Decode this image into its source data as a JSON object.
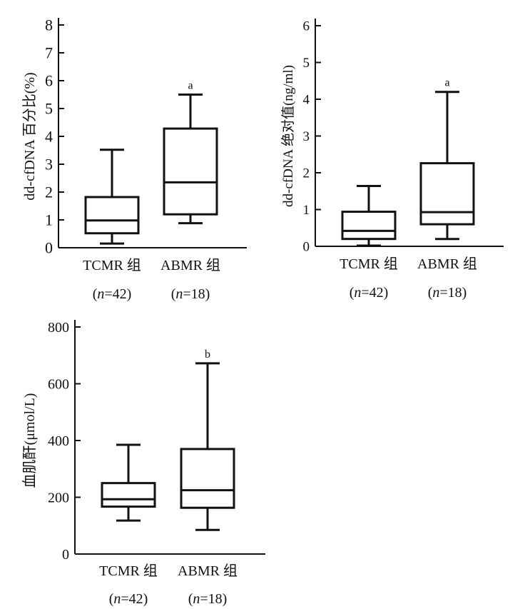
{
  "chart_data": [
    {
      "type": "box",
      "ylabel": "dd-cfDNA 百分比(%)",
      "ylim": [
        0,
        8
      ],
      "yticks": [
        "0",
        "1",
        "2",
        "3",
        "4",
        "5",
        "6",
        "7",
        "8"
      ],
      "categories": [
        {
          "label": "TCMR 组",
          "sublabel": "(n=42)",
          "min": 0.15,
          "q1": 0.52,
          "median": 0.98,
          "q3": 1.82,
          "max": 3.52,
          "annotation": ""
        },
        {
          "label": "ABMR 组",
          "sublabel": "(n=18)",
          "min": 0.88,
          "q1": 1.2,
          "median": 2.35,
          "q3": 4.28,
          "max": 5.5,
          "annotation": "a"
        }
      ]
    },
    {
      "type": "box",
      "ylabel": "dd-cfDNA 绝对值(ng/ml)",
      "ylim": [
        0,
        6
      ],
      "yticks": [
        "0",
        "1",
        "2",
        "3",
        "4",
        "5",
        "6"
      ],
      "categories": [
        {
          "label": "TCMR 组",
          "sublabel": "(n=42)",
          "min": 0.02,
          "q1": 0.2,
          "median": 0.42,
          "q3": 0.94,
          "max": 1.64,
          "annotation": ""
        },
        {
          "label": "ABMR 组",
          "sublabel": "(n=18)",
          "min": 0.2,
          "q1": 0.6,
          "median": 0.93,
          "q3": 2.26,
          "max": 4.2,
          "annotation": "a"
        }
      ]
    },
    {
      "type": "box",
      "ylabel": "血肌酐(μmol/L)",
      "ylim": [
        0,
        800
      ],
      "yticks": [
        "0",
        "200",
        "400",
        "600",
        "800"
      ],
      "categories": [
        {
          "label": "TCMR 组",
          "sublabel": "(n=42)",
          "min": 118,
          "q1": 167,
          "median": 193,
          "q3": 250,
          "max": 385,
          "annotation": ""
        },
        {
          "label": "ABMR 组",
          "sublabel": "(n=18)",
          "min": 85,
          "q1": 163,
          "median": 225,
          "q3": 370,
          "max": 672,
          "annotation": "b"
        }
      ]
    }
  ]
}
